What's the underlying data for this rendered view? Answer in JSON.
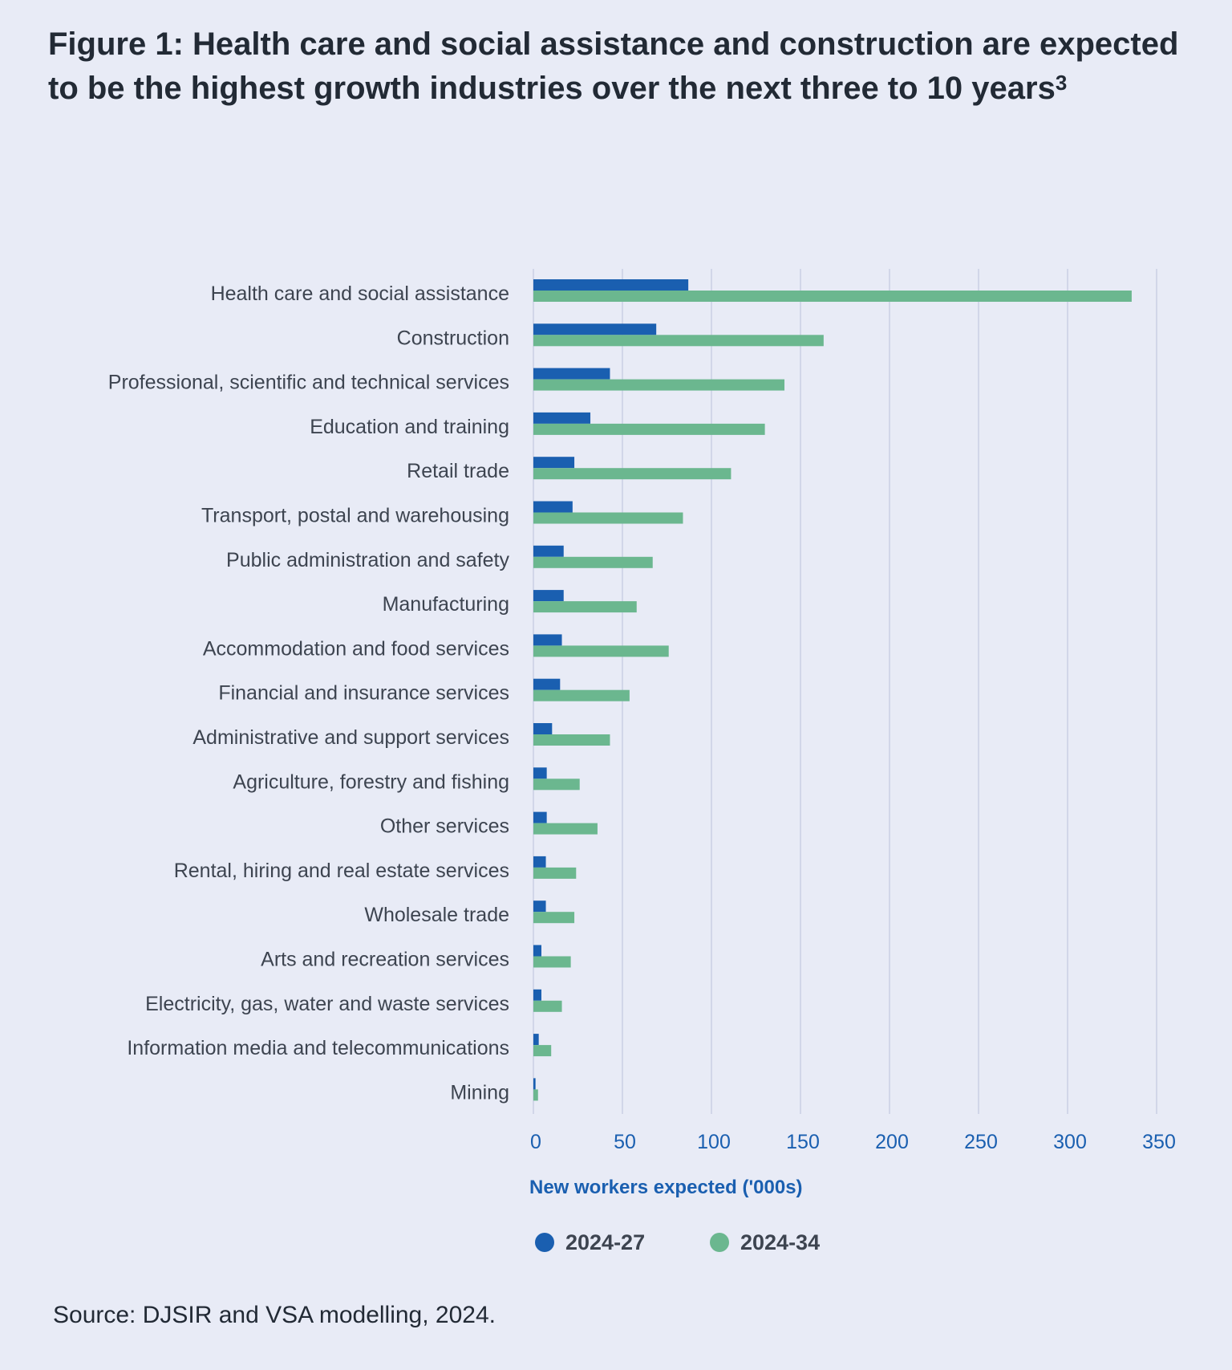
{
  "chart_data": {
    "type": "bar",
    "orientation": "horizontal",
    "title": "Figure 1: Health care and social assistance and construction are expected to be the highest growth industries over the next three to 10 years",
    "title_superscript": "3",
    "xlabel": "New workers expected ('000s)",
    "ylabel": "",
    "xlim": [
      0,
      350
    ],
    "xticks": [
      "0",
      "50",
      "100",
      "150",
      "200",
      "250",
      "300",
      "350"
    ],
    "grid": "vertical",
    "legend_position": "bottom",
    "categories": [
      "Health care and social assistance",
      "Construction",
      "Professional, scientific and technical services",
      "Education and training",
      "Retail trade",
      "Transport, postal and warehousing",
      "Public administration and safety",
      "Manufacturing",
      "Accommodation and food services",
      "Financial and insurance services",
      "Administrative and support services",
      "Agriculture, forestry and fishing",
      "Other services",
      "Rental, hiring and real estate services",
      "Wholesale trade",
      "Arts and recreation services",
      "Electricity, gas, water and waste services",
      "Information media and telecommunications",
      "Mining"
    ],
    "series": [
      {
        "name": "2024-27",
        "color": "#1a5fb0",
        "values": [
          87,
          69,
          43,
          32,
          23,
          22,
          17,
          17,
          16,
          15,
          10.5,
          7.5,
          7.5,
          7,
          7,
          4.5,
          4.5,
          3,
          1.2
        ]
      },
      {
        "name": "2024-34",
        "color": "#6bb78f",
        "values": [
          336,
          163,
          141,
          130,
          111,
          84,
          67,
          58,
          76,
          54,
          43,
          26,
          36,
          24,
          23,
          21,
          16,
          10,
          2.6
        ]
      }
    ],
    "source": "Source: DJSIR and VSA modelling, 2024."
  }
}
